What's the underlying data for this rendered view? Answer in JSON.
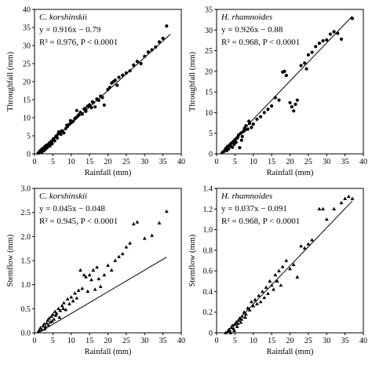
{
  "chart_data": [
    {
      "type": "scatter",
      "species": "C. korshinskii",
      "equation": "y = 0.916x − 0.79",
      "stats": "R² = 0.976,   P < 0.0001",
      "xlabel": "Rainfall (mm)",
      "ylabel": "Throughfall (mm)",
      "xlim": [
        0,
        40
      ],
      "ylim": [
        0,
        40
      ],
      "xticks": [
        "0",
        "5",
        "10",
        "15",
        "20",
        "25",
        "30",
        "35",
        "40"
      ],
      "yticks": [
        "0",
        "5",
        "10",
        "15",
        "20",
        "25",
        "30",
        "35",
        "40"
      ],
      "marker": "circle",
      "fit": {
        "slope": 0.916,
        "intercept": -0.79,
        "x_range": [
          1,
          37
        ]
      },
      "points": [
        [
          1,
          0.2
        ],
        [
          1.2,
          0.4
        ],
        [
          1.5,
          0.8
        ],
        [
          1.8,
          1.1
        ],
        [
          2,
          0.5
        ],
        [
          2.2,
          1.5
        ],
        [
          2.5,
          1.2
        ],
        [
          2.8,
          2
        ],
        [
          3,
          1.6
        ],
        [
          3.2,
          2.4
        ],
        [
          3.5,
          1.8
        ],
        [
          3.8,
          2.6
        ],
        [
          4,
          3
        ],
        [
          4.2,
          2.2
        ],
        [
          4.5,
          3.4
        ],
        [
          4.8,
          2.8
        ],
        [
          5,
          3.8
        ],
        [
          5.2,
          4.2
        ],
        [
          5.5,
          3.6
        ],
        [
          5.8,
          4.8
        ],
        [
          6,
          5
        ],
        [
          6.2,
          4.4
        ],
        [
          6.5,
          5.6
        ],
        [
          7,
          6
        ],
        [
          7.5,
          6.4
        ],
        [
          8,
          5.8
        ],
        [
          8.5,
          7
        ],
        [
          9,
          7.6
        ],
        [
          9.5,
          8.2
        ],
        [
          10,
          8.6
        ],
        [
          10.5,
          9
        ],
        [
          11,
          9.8
        ],
        [
          11.5,
          10.2
        ],
        [
          12,
          10.8
        ],
        [
          11.5,
          12
        ],
        [
          12.5,
          11.5
        ],
        [
          13,
          11
        ],
        [
          13.5,
          12.4
        ],
        [
          14,
          11.8
        ],
        [
          14.5,
          13.2
        ],
        [
          15,
          13.6
        ],
        [
          15.5,
          12.8
        ],
        [
          16,
          14.2
        ],
        [
          16.5,
          13
        ],
        [
          17,
          15.2
        ],
        [
          17.5,
          14.8
        ],
        [
          18,
          16
        ],
        [
          18.5,
          15.6
        ],
        [
          19,
          13.5
        ],
        [
          20,
          17.8
        ],
        [
          20.5,
          18.4
        ],
        [
          21,
          19.6
        ],
        [
          21.5,
          20
        ],
        [
          22,
          20.4
        ],
        [
          22.5,
          19
        ],
        [
          23,
          21.2
        ],
        [
          24,
          21.8
        ],
        [
          25,
          22.4
        ],
        [
          26,
          23
        ],
        [
          27,
          24.6
        ],
        [
          28,
          25.6
        ],
        [
          29,
          25
        ],
        [
          30,
          27
        ],
        [
          31,
          28.2
        ],
        [
          32,
          28.8
        ],
        [
          33,
          29.6
        ],
        [
          34,
          31
        ],
        [
          35,
          32
        ],
        [
          36,
          35.4
        ],
        [
          2.6,
          0.9
        ],
        [
          3.1,
          1.4
        ],
        [
          4.1,
          2.9
        ],
        [
          5.1,
          4.1
        ],
        [
          6.6,
          6.1
        ],
        [
          7.2,
          5.4
        ],
        [
          8.8,
          7.9
        ],
        [
          9.8,
          9.2
        ],
        [
          13.8,
          12.6
        ],
        [
          15.8,
          14.4
        ]
      ]
    },
    {
      "type": "scatter",
      "species": "H. rhamnoides",
      "equation": "y = 0.926x − 0.88",
      "stats": "R² = 0.968,   P < 0.0001",
      "xlabel": "Rainfall (mm)",
      "ylabel": "Throughfall (mm)",
      "xlim": [
        0,
        40
      ],
      "ylim": [
        0,
        35
      ],
      "xticks": [
        "0",
        "5",
        "10",
        "15",
        "20",
        "25",
        "30",
        "35",
        "40"
      ],
      "yticks": [
        "0",
        "5",
        "10",
        "15",
        "20",
        "25",
        "30",
        "35"
      ],
      "marker": "circle",
      "fit": {
        "slope": 0.926,
        "intercept": -0.88,
        "x_range": [
          1.5,
          37
        ]
      },
      "points": [
        [
          1.5,
          0.3
        ],
        [
          2,
          0.6
        ],
        [
          2.3,
          1
        ],
        [
          2.6,
          1.4
        ],
        [
          3,
          1.8
        ],
        [
          3.3,
          1.2
        ],
        [
          3.6,
          2.2
        ],
        [
          4,
          2.6
        ],
        [
          4.3,
          1.6
        ],
        [
          4.6,
          3
        ],
        [
          5,
          3.4
        ],
        [
          5.3,
          2.8
        ],
        [
          5.6,
          3.8
        ],
        [
          6,
          4.6
        ],
        [
          6.3,
          1.5
        ],
        [
          6.6,
          5
        ],
        [
          7,
          4.2
        ],
        [
          7.3,
          5.4
        ],
        [
          7.6,
          6.2
        ],
        [
          8,
          6.8
        ],
        [
          8.5,
          6
        ],
        [
          9,
          7.4
        ],
        [
          9.5,
          6.4
        ],
        [
          10,
          7.2
        ],
        [
          11,
          8.4
        ],
        [
          12,
          9
        ],
        [
          13,
          10
        ],
        [
          14,
          10.8
        ],
        [
          15,
          11.6
        ],
        [
          16,
          13.6
        ],
        [
          17,
          13
        ],
        [
          18,
          19.8
        ],
        [
          18.5,
          20
        ],
        [
          19,
          19
        ],
        [
          20,
          12.4
        ],
        [
          20.5,
          11.4
        ],
        [
          21,
          10.4
        ],
        [
          21.5,
          12
        ],
        [
          22,
          13
        ],
        [
          23,
          21.4
        ],
        [
          24,
          22
        ],
        [
          24.5,
          20.6
        ],
        [
          25,
          24
        ],
        [
          26,
          24.6
        ],
        [
          27,
          26
        ],
        [
          28,
          26.8
        ],
        [
          29,
          27.4
        ],
        [
          30,
          27.6
        ],
        [
          31,
          29
        ],
        [
          32,
          29.6
        ],
        [
          33,
          29.2
        ],
        [
          34,
          27.8
        ],
        [
          37,
          32.8
        ],
        [
          2.8,
          0.8
        ],
        [
          3.8,
          1.9
        ],
        [
          4.8,
          2.3
        ],
        [
          5.8,
          4.1
        ],
        [
          6.8,
          3.3
        ],
        [
          7.8,
          5.8
        ],
        [
          8.8,
          7.9
        ]
      ]
    },
    {
      "type": "scatter",
      "species": "C. korshinskii",
      "equation": "y = 0.045x − 0.048",
      "stats": "R² = 0.945,   P < 0.0001",
      "xlabel": "Rainfall (mm)",
      "ylabel": "Stemflow (mm)",
      "xlim": [
        0,
        40
      ],
      "ylim": [
        0,
        3.0
      ],
      "xticks": [
        "0",
        "5",
        "10",
        "15",
        "20",
        "25",
        "30",
        "35",
        "40"
      ],
      "yticks": [
        "0.0",
        "0.5",
        "1.0",
        "1.5",
        "2.0",
        "2.5",
        "3.0"
      ],
      "marker": "triangle",
      "fit": {
        "slope": 0.045,
        "intercept": -0.048,
        "x_range": [
          1,
          36
        ]
      },
      "points": [
        [
          1,
          0.02
        ],
        [
          1.3,
          0.05
        ],
        [
          1.6,
          0.1
        ],
        [
          2,
          0.06
        ],
        [
          2.3,
          0.14
        ],
        [
          2.6,
          0.18
        ],
        [
          3,
          0.12
        ],
        [
          3.3,
          0.2
        ],
        [
          3.6,
          0.26
        ],
        [
          4,
          0.3
        ],
        [
          4.3,
          0.22
        ],
        [
          4.6,
          0.34
        ],
        [
          5,
          0.38
        ],
        [
          5.3,
          0.28
        ],
        [
          5.6,
          0.44
        ],
        [
          6,
          0.4
        ],
        [
          6.5,
          0.5
        ],
        [
          7,
          0.46
        ],
        [
          7.5,
          0.56
        ],
        [
          8,
          0.62
        ],
        [
          8.5,
          0.48
        ],
        [
          9,
          0.7
        ],
        [
          9.5,
          0.6
        ],
        [
          10,
          0.74
        ],
        [
          10.5,
          0.66
        ],
        [
          11,
          0.82
        ],
        [
          11.5,
          0.72
        ],
        [
          12,
          0.88
        ],
        [
          12.5,
          1.3
        ],
        [
          13,
          0.92
        ],
        [
          13.5,
          1.2
        ],
        [
          14,
          1.16
        ],
        [
          14.5,
          0.86
        ],
        [
          15,
          1.2
        ],
        [
          15.5,
          1.1
        ],
        [
          16,
          1.3
        ],
        [
          16.5,
          0.9
        ],
        [
          17,
          1.36
        ],
        [
          17.5,
          1.12
        ],
        [
          18,
          0.96
        ],
        [
          19,
          1.2
        ],
        [
          20,
          1.4
        ],
        [
          21,
          1.3
        ],
        [
          22,
          1.5
        ],
        [
          23,
          1.58
        ],
        [
          24,
          1.64
        ],
        [
          25,
          1.78
        ],
        [
          26,
          1.86
        ],
        [
          27,
          2.26
        ],
        [
          28,
          2.3
        ],
        [
          30,
          1.96
        ],
        [
          32,
          2.02
        ],
        [
          34,
          2.28
        ],
        [
          36,
          2.52
        ],
        [
          2.8,
          0.08
        ],
        [
          3.8,
          0.16
        ],
        [
          4.8,
          0.24
        ],
        [
          5.8,
          0.36
        ],
        [
          6.8,
          0.32
        ],
        [
          7.8,
          0.5
        ]
      ]
    },
    {
      "type": "scatter",
      "species": "H. rhamnoides",
      "equation": "y = 0.037x − 0.091",
      "stats": "R² = 0.968,   P < 0.0001",
      "xlabel": "Rainfall (mm)",
      "ylabel": "Stemflow (mm)",
      "xlim": [
        0,
        40
      ],
      "ylim": [
        0,
        1.4
      ],
      "xticks": [
        "0",
        "5",
        "10",
        "15",
        "20",
        "25",
        "30",
        "35",
        "40"
      ],
      "yticks": [
        "0",
        "0.2",
        "0.4",
        "0.6",
        "0.8",
        "1.0",
        "1.2",
        "1.4"
      ],
      "marker": "triangle",
      "fit": {
        "slope": 0.037,
        "intercept": -0.091,
        "x_range": [
          2.5,
          37
        ]
      },
      "points": [
        [
          2.5,
          0
        ],
        [
          3,
          0.01
        ],
        [
          3.3,
          0.03
        ],
        [
          3.6,
          0.02
        ],
        [
          4,
          0.05
        ],
        [
          4.3,
          0.07
        ],
        [
          4.6,
          0.04
        ],
        [
          5,
          0.08
        ],
        [
          5.3,
          0.1
        ],
        [
          5.6,
          0.06
        ],
        [
          6,
          0.12
        ],
        [
          6.3,
          0.14
        ],
        [
          6.6,
          0.1
        ],
        [
          7,
          0.16
        ],
        [
          7.5,
          0.2
        ],
        [
          8,
          0.18
        ],
        [
          8.5,
          0.24
        ],
        [
          9,
          0.22
        ],
        [
          9.5,
          0.3
        ],
        [
          10,
          0.26
        ],
        [
          10.5,
          0.32
        ],
        [
          11,
          0.28
        ],
        [
          11.5,
          0.36
        ],
        [
          12,
          0.3
        ],
        [
          12.5,
          0.4
        ],
        [
          13,
          0.34
        ],
        [
          13.5,
          0.44
        ],
        [
          14,
          0.38
        ],
        [
          14.5,
          0.5
        ],
        [
          15,
          0.46
        ],
        [
          15.5,
          0.42
        ],
        [
          16,
          0.56
        ],
        [
          16.5,
          0.5
        ],
        [
          17,
          0.6
        ],
        [
          17.5,
          0.46
        ],
        [
          18,
          0.64
        ],
        [
          19,
          0.7
        ],
        [
          20,
          0.62
        ],
        [
          21,
          0.66
        ],
        [
          22,
          0.54
        ],
        [
          23,
          0.84
        ],
        [
          24,
          0.82
        ],
        [
          25,
          0.86
        ],
        [
          26,
          0.9
        ],
        [
          28,
          1.2
        ],
        [
          29,
          1.2
        ],
        [
          30,
          1.1
        ],
        [
          32,
          1.2
        ],
        [
          34,
          1.26
        ],
        [
          35,
          1.3
        ],
        [
          36,
          1.32
        ],
        [
          37,
          1.3
        ],
        [
          3.8,
          0
        ],
        [
          4.8,
          0.02
        ],
        [
          5.8,
          0.09
        ],
        [
          6.8,
          0.13
        ],
        [
          7.8,
          0.15
        ]
      ]
    }
  ]
}
